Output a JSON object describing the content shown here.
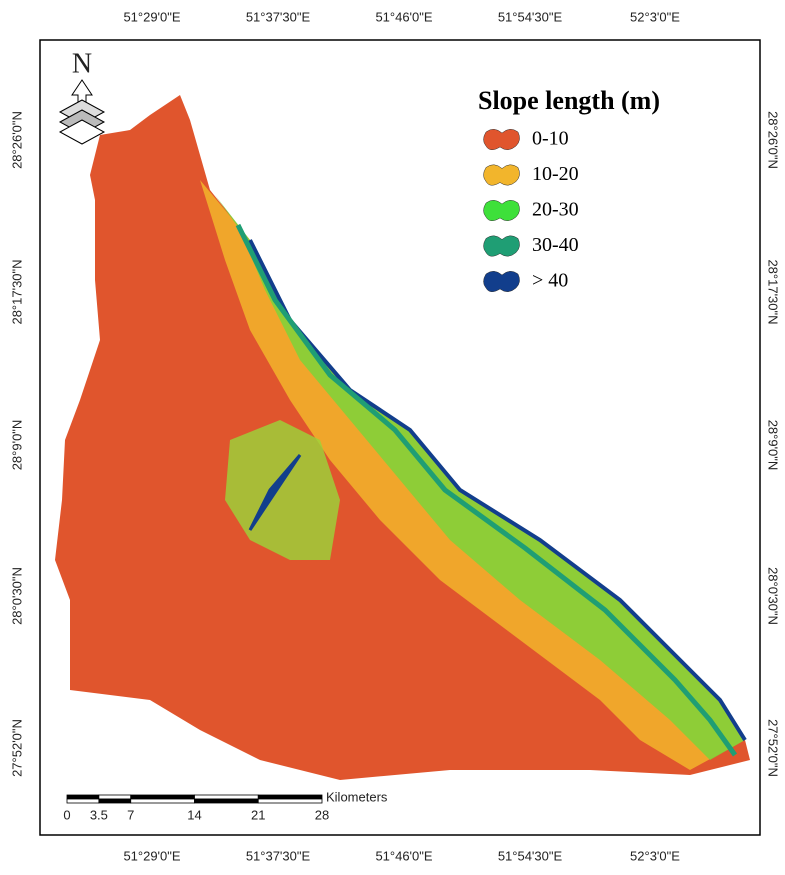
{
  "map": {
    "top_labels": [
      "51°29'0\"E",
      "51°37'30\"E",
      "51°46'0\"E",
      "51°54'30\"E",
      "52°3'0\"E"
    ],
    "bottom_labels": [
      "51°29'0\"E",
      "51°37'30\"E",
      "51°46'0\"E",
      "51°54'30\"E",
      "52°3'0\"E"
    ],
    "left_labels": [
      "28°26'0\"N",
      "28°17'30\"N",
      "28°9'0\"N",
      "28°0'30\"N",
      "27°52'0\"N"
    ],
    "right_labels": [
      "28°26'0\"N",
      "28°17'30\"N",
      "28°9'0\"N",
      "28°0'30\"N",
      "27°52'0\"N"
    ],
    "north": "N",
    "legend": {
      "title": "Slope length (m)",
      "items": [
        {
          "label": "0-10",
          "color": "#e0552d"
        },
        {
          "label": "10-20",
          "color": "#f2b52c"
        },
        {
          "label": "20-30",
          "color": "#3ee03a"
        },
        {
          "label": "30-40",
          "color": "#1f9e74"
        },
        {
          "label": "> 40",
          "color": "#123e8c"
        }
      ]
    },
    "scale_bar": {
      "unit": "Kilometers",
      "ticks": [
        0,
        3.5,
        7,
        14,
        21,
        28
      ]
    }
  }
}
